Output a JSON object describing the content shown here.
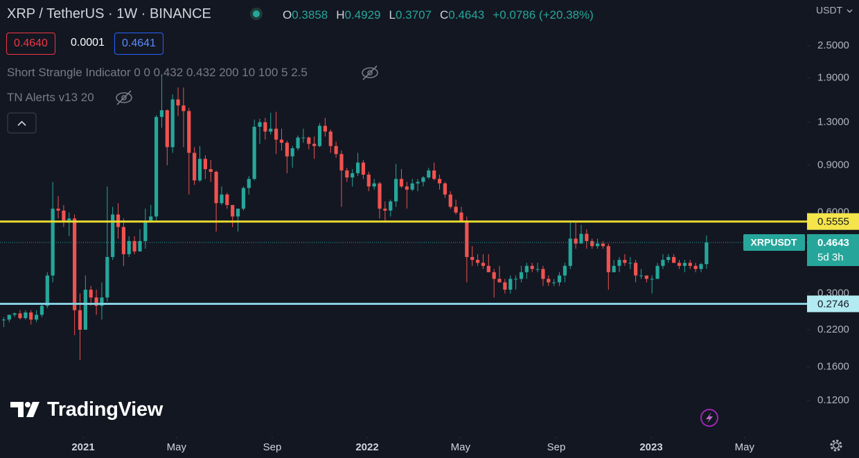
{
  "header": {
    "symbol": "XRP / TetherUS · 1W · BINANCE",
    "ohlc_labels": [
      "O",
      "H",
      "L",
      "C"
    ],
    "change": "+0.0786 (+20.38%)"
  },
  "quotes": {
    "bid": "0.4640",
    "spread": "0.0001",
    "ask": "0.4641"
  },
  "indicators": [
    "Short Strangle Indicator 0 0 0.432 0.432 200 10 100 5 2.5",
    "TN Alerts v13 20"
  ],
  "branding": "TradingView",
  "chart_data": {
    "type": "candlestick",
    "log_scale": true,
    "y_unit": "USDT",
    "up_color": "#26a69a",
    "down_color": "#ef5350",
    "ylim": [
      0.0882,
      3.7
    ],
    "yticks": [
      {
        "value": 2.5,
        "label": "2.5000"
      },
      {
        "value": 1.9,
        "label": "1.9000"
      },
      {
        "value": 1.3,
        "label": "1.3000"
      },
      {
        "value": 0.9,
        "label": "0.9000"
      },
      {
        "value": 0.6,
        "label": "0.6000"
      },
      {
        "value": 0.3,
        "label": "0.3000"
      },
      {
        "value": 0.22,
        "label": "0.2200"
      },
      {
        "value": 0.16,
        "label": "0.1600"
      },
      {
        "value": 0.12,
        "label": "0.1200"
      }
    ],
    "xticks": [
      {
        "value": "2021-01",
        "label": "2021"
      },
      {
        "value": "2021-05",
        "label": "May"
      },
      {
        "value": "2021-09",
        "label": "Sep"
      },
      {
        "value": "2022-01",
        "label": "2022"
      },
      {
        "value": "2022-05",
        "label": "May"
      },
      {
        "value": "2022-09",
        "label": "Sep"
      },
      {
        "value": "2023-01",
        "label": "2023"
      },
      {
        "value": "2023-05",
        "label": "May"
      }
    ],
    "open": [
      0.24,
      0.24,
      0.25,
      0.253,
      0.243,
      0.255,
      0.24,
      0.25,
      0.27,
      0.35,
      0.62,
      0.61,
      0.56,
      0.57,
      0.26,
      0.22,
      0.31,
      0.29,
      0.27,
      0.29,
      0.41,
      0.59,
      0.53,
      0.42,
      0.47,
      0.43,
      0.47,
      0.56,
      0.58,
      1.36,
      1.44,
      1.05,
      1.58,
      1.5,
      1.43,
      1.0,
      0.79,
      0.95,
      0.87,
      0.85,
      0.65,
      0.7,
      0.64,
      0.58,
      0.62,
      0.74,
      0.8,
      1.25,
      1.3,
      1.2,
      1.23,
      1.12,
      1.09,
      0.97,
      1.04,
      1.14,
      1.14,
      1.08,
      1.06,
      1.26,
      1.2,
      1.06,
      0.99,
      0.86,
      0.81,
      0.84,
      0.92,
      0.83,
      0.75,
      0.77,
      0.62,
      0.61,
      0.66,
      0.8,
      0.75,
      0.73,
      0.77,
      0.78,
      0.81,
      0.86,
      0.8,
      0.77,
      0.7,
      0.63,
      0.6,
      0.56,
      0.41,
      0.4,
      0.39,
      0.38,
      0.36,
      0.34,
      0.33,
      0.31,
      0.34,
      0.34,
      0.36,
      0.38,
      0.37,
      0.37,
      0.34,
      0.33,
      0.33,
      0.35,
      0.38,
      0.48,
      0.46,
      0.5,
      0.47,
      0.45,
      0.46,
      0.45,
      0.36,
      0.38,
      0.4,
      0.39,
      0.39,
      0.35,
      0.35,
      0.34,
      0.34,
      0.38,
      0.4,
      0.41,
      0.39,
      0.38,
      0.39,
      0.38,
      0.37,
      0.3858
    ],
    "high": [
      0.245,
      0.25,
      0.255,
      0.26,
      0.26,
      0.26,
      0.26,
      0.275,
      0.36,
      0.78,
      0.69,
      0.64,
      0.6,
      0.59,
      0.3,
      0.35,
      0.32,
      0.31,
      0.33,
      0.75,
      0.63,
      0.65,
      0.57,
      0.49,
      0.49,
      0.52,
      0.62,
      0.64,
      1.38,
      1.96,
      1.45,
      1.65,
      1.75,
      1.75,
      1.47,
      1.05,
      1.06,
      0.98,
      0.94,
      0.86,
      0.75,
      0.71,
      0.64,
      0.62,
      0.75,
      0.82,
      1.33,
      1.34,
      1.35,
      1.41,
      1.42,
      1.23,
      1.11,
      1.06,
      1.16,
      1.23,
      1.15,
      1.15,
      1.29,
      1.35,
      1.22,
      1.1,
      1.02,
      0.88,
      0.87,
      1.0,
      0.94,
      0.85,
      0.8,
      0.78,
      0.66,
      0.67,
      0.91,
      0.87,
      0.78,
      0.8,
      0.8,
      0.82,
      0.88,
      0.92,
      0.83,
      0.78,
      0.72,
      0.67,
      0.63,
      0.58,
      0.45,
      0.42,
      0.42,
      0.42,
      0.37,
      0.38,
      0.34,
      0.35,
      0.35,
      0.38,
      0.39,
      0.39,
      0.39,
      0.38,
      0.35,
      0.34,
      0.36,
      0.39,
      0.56,
      0.55,
      0.54,
      0.52,
      0.48,
      0.48,
      0.47,
      0.46,
      0.4,
      0.41,
      0.42,
      0.41,
      0.4,
      0.37,
      0.35,
      0.35,
      0.39,
      0.42,
      0.42,
      0.42,
      0.4,
      0.4,
      0.4,
      0.39,
      0.39,
      0.4929
    ],
    "low": [
      0.225,
      0.235,
      0.245,
      0.24,
      0.24,
      0.23,
      0.235,
      0.245,
      0.265,
      0.33,
      0.57,
      0.53,
      0.49,
      0.21,
      0.17,
      0.22,
      0.27,
      0.25,
      0.24,
      0.28,
      0.4,
      0.48,
      0.38,
      0.41,
      0.42,
      0.43,
      0.44,
      0.55,
      0.56,
      1.24,
      0.9,
      1.0,
      1.37,
      1.05,
      0.7,
      0.76,
      0.78,
      0.8,
      0.78,
      0.51,
      0.64,
      0.62,
      0.53,
      0.51,
      0.61,
      0.7,
      0.79,
      1.08,
      1.12,
      1.17,
      0.99,
      1.02,
      0.84,
      0.88,
      1.02,
      1.09,
      1.03,
      0.95,
      1.05,
      1.15,
      1.0,
      0.96,
      0.63,
      0.78,
      0.75,
      0.82,
      0.8,
      0.72,
      0.73,
      0.57,
      0.55,
      0.58,
      0.63,
      0.74,
      0.62,
      0.72,
      0.72,
      0.75,
      0.8,
      0.79,
      0.73,
      0.68,
      0.62,
      0.59,
      0.55,
      0.33,
      0.38,
      0.38,
      0.37,
      0.36,
      0.29,
      0.33,
      0.3,
      0.3,
      0.31,
      0.33,
      0.34,
      0.36,
      0.36,
      0.32,
      0.32,
      0.32,
      0.32,
      0.33,
      0.37,
      0.44,
      0.46,
      0.44,
      0.44,
      0.44,
      0.44,
      0.31,
      0.36,
      0.36,
      0.38,
      0.37,
      0.33,
      0.34,
      0.33,
      0.3,
      0.34,
      0.37,
      0.39,
      0.39,
      0.37,
      0.36,
      0.37,
      0.36,
      0.36,
      0.3707
    ],
    "close": [
      0.24,
      0.25,
      0.253,
      0.243,
      0.255,
      0.24,
      0.25,
      0.27,
      0.35,
      0.62,
      0.61,
      0.56,
      0.57,
      0.26,
      0.22,
      0.31,
      0.29,
      0.27,
      0.29,
      0.41,
      0.59,
      0.53,
      0.42,
      0.47,
      0.43,
      0.47,
      0.56,
      0.58,
      1.36,
      1.44,
      1.05,
      1.58,
      1.5,
      1.43,
      1.0,
      0.79,
      0.95,
      0.87,
      0.85,
      0.65,
      0.7,
      0.64,
      0.58,
      0.62,
      0.74,
      0.8,
      1.25,
      1.3,
      1.2,
      1.23,
      1.12,
      1.09,
      0.97,
      1.04,
      1.14,
      1.14,
      1.08,
      1.06,
      1.26,
      1.2,
      1.06,
      0.99,
      0.86,
      0.81,
      0.84,
      0.92,
      0.83,
      0.75,
      0.77,
      0.62,
      0.61,
      0.66,
      0.8,
      0.75,
      0.73,
      0.77,
      0.78,
      0.81,
      0.86,
      0.8,
      0.77,
      0.7,
      0.63,
      0.6,
      0.56,
      0.41,
      0.4,
      0.39,
      0.38,
      0.36,
      0.34,
      0.33,
      0.31,
      0.34,
      0.34,
      0.36,
      0.38,
      0.37,
      0.37,
      0.34,
      0.33,
      0.33,
      0.35,
      0.38,
      0.48,
      0.46,
      0.5,
      0.47,
      0.45,
      0.46,
      0.45,
      0.36,
      0.38,
      0.4,
      0.39,
      0.39,
      0.35,
      0.35,
      0.34,
      0.34,
      0.38,
      0.4,
      0.41,
      0.39,
      0.38,
      0.39,
      0.38,
      0.37,
      0.3858,
      0.4643
    ],
    "levels": [
      {
        "value": 0.5555,
        "color": "#e9db2e",
        "label_color": "#f5e54a"
      },
      {
        "value": 0.2746,
        "color": "#86cfe0",
        "label_color": "#b2ebf2"
      }
    ],
    "last_price": {
      "name": "XRPUSDT",
      "countdown": "5d 3h"
    }
  }
}
